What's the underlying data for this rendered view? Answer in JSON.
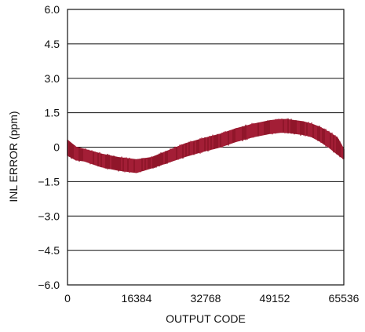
{
  "chart_data": {
    "type": "area",
    "title": "",
    "xlabel": "OUTPUT CODE",
    "ylabel": "INL ERROR (ppm)",
    "xlim": [
      0,
      65536
    ],
    "ylim": [
      -6.0,
      6.0
    ],
    "x_ticks": [
      0,
      16384,
      32768,
      49152,
      65536
    ],
    "x_tick_labels": [
      "0",
      "16384",
      "32768",
      "49152",
      "65536"
    ],
    "y_ticks": [
      6.0,
      4.5,
      3.0,
      1.5,
      0,
      -1.5,
      -3.0,
      -4.5,
      -6.0
    ],
    "y_tick_labels": [
      "6.0",
      "4.5",
      "3.0",
      "1.5",
      "0",
      "−1.5",
      "−3.0",
      "−4.5",
      "−6.0"
    ],
    "grid": "horizontal",
    "legend": "none",
    "series": [
      {
        "color": "#9b1b30",
        "x": [
          0,
          2000,
          4000,
          8000,
          12000,
          16384,
          20000,
          24000,
          28000,
          32768,
          36000,
          40000,
          44000,
          48000,
          50500,
          52000,
          54000,
          56000,
          58000,
          60000,
          62000,
          64000,
          65536
        ],
        "y_upper": [
          0.3,
          0.0,
          -0.1,
          -0.3,
          -0.45,
          -0.55,
          -0.45,
          -0.15,
          0.15,
          0.4,
          0.55,
          0.8,
          1.0,
          1.15,
          1.2,
          1.2,
          1.15,
          1.1,
          1.0,
          0.85,
          0.65,
          0.4,
          -0.1
        ],
        "y_lower": [
          -0.35,
          -0.55,
          -0.6,
          -0.85,
          -1.0,
          -1.1,
          -0.9,
          -0.65,
          -0.4,
          -0.15,
          0.0,
          0.25,
          0.45,
          0.6,
          0.65,
          0.65,
          0.6,
          0.55,
          0.45,
          0.25,
          0.0,
          -0.3,
          -0.5
        ]
      }
    ]
  }
}
